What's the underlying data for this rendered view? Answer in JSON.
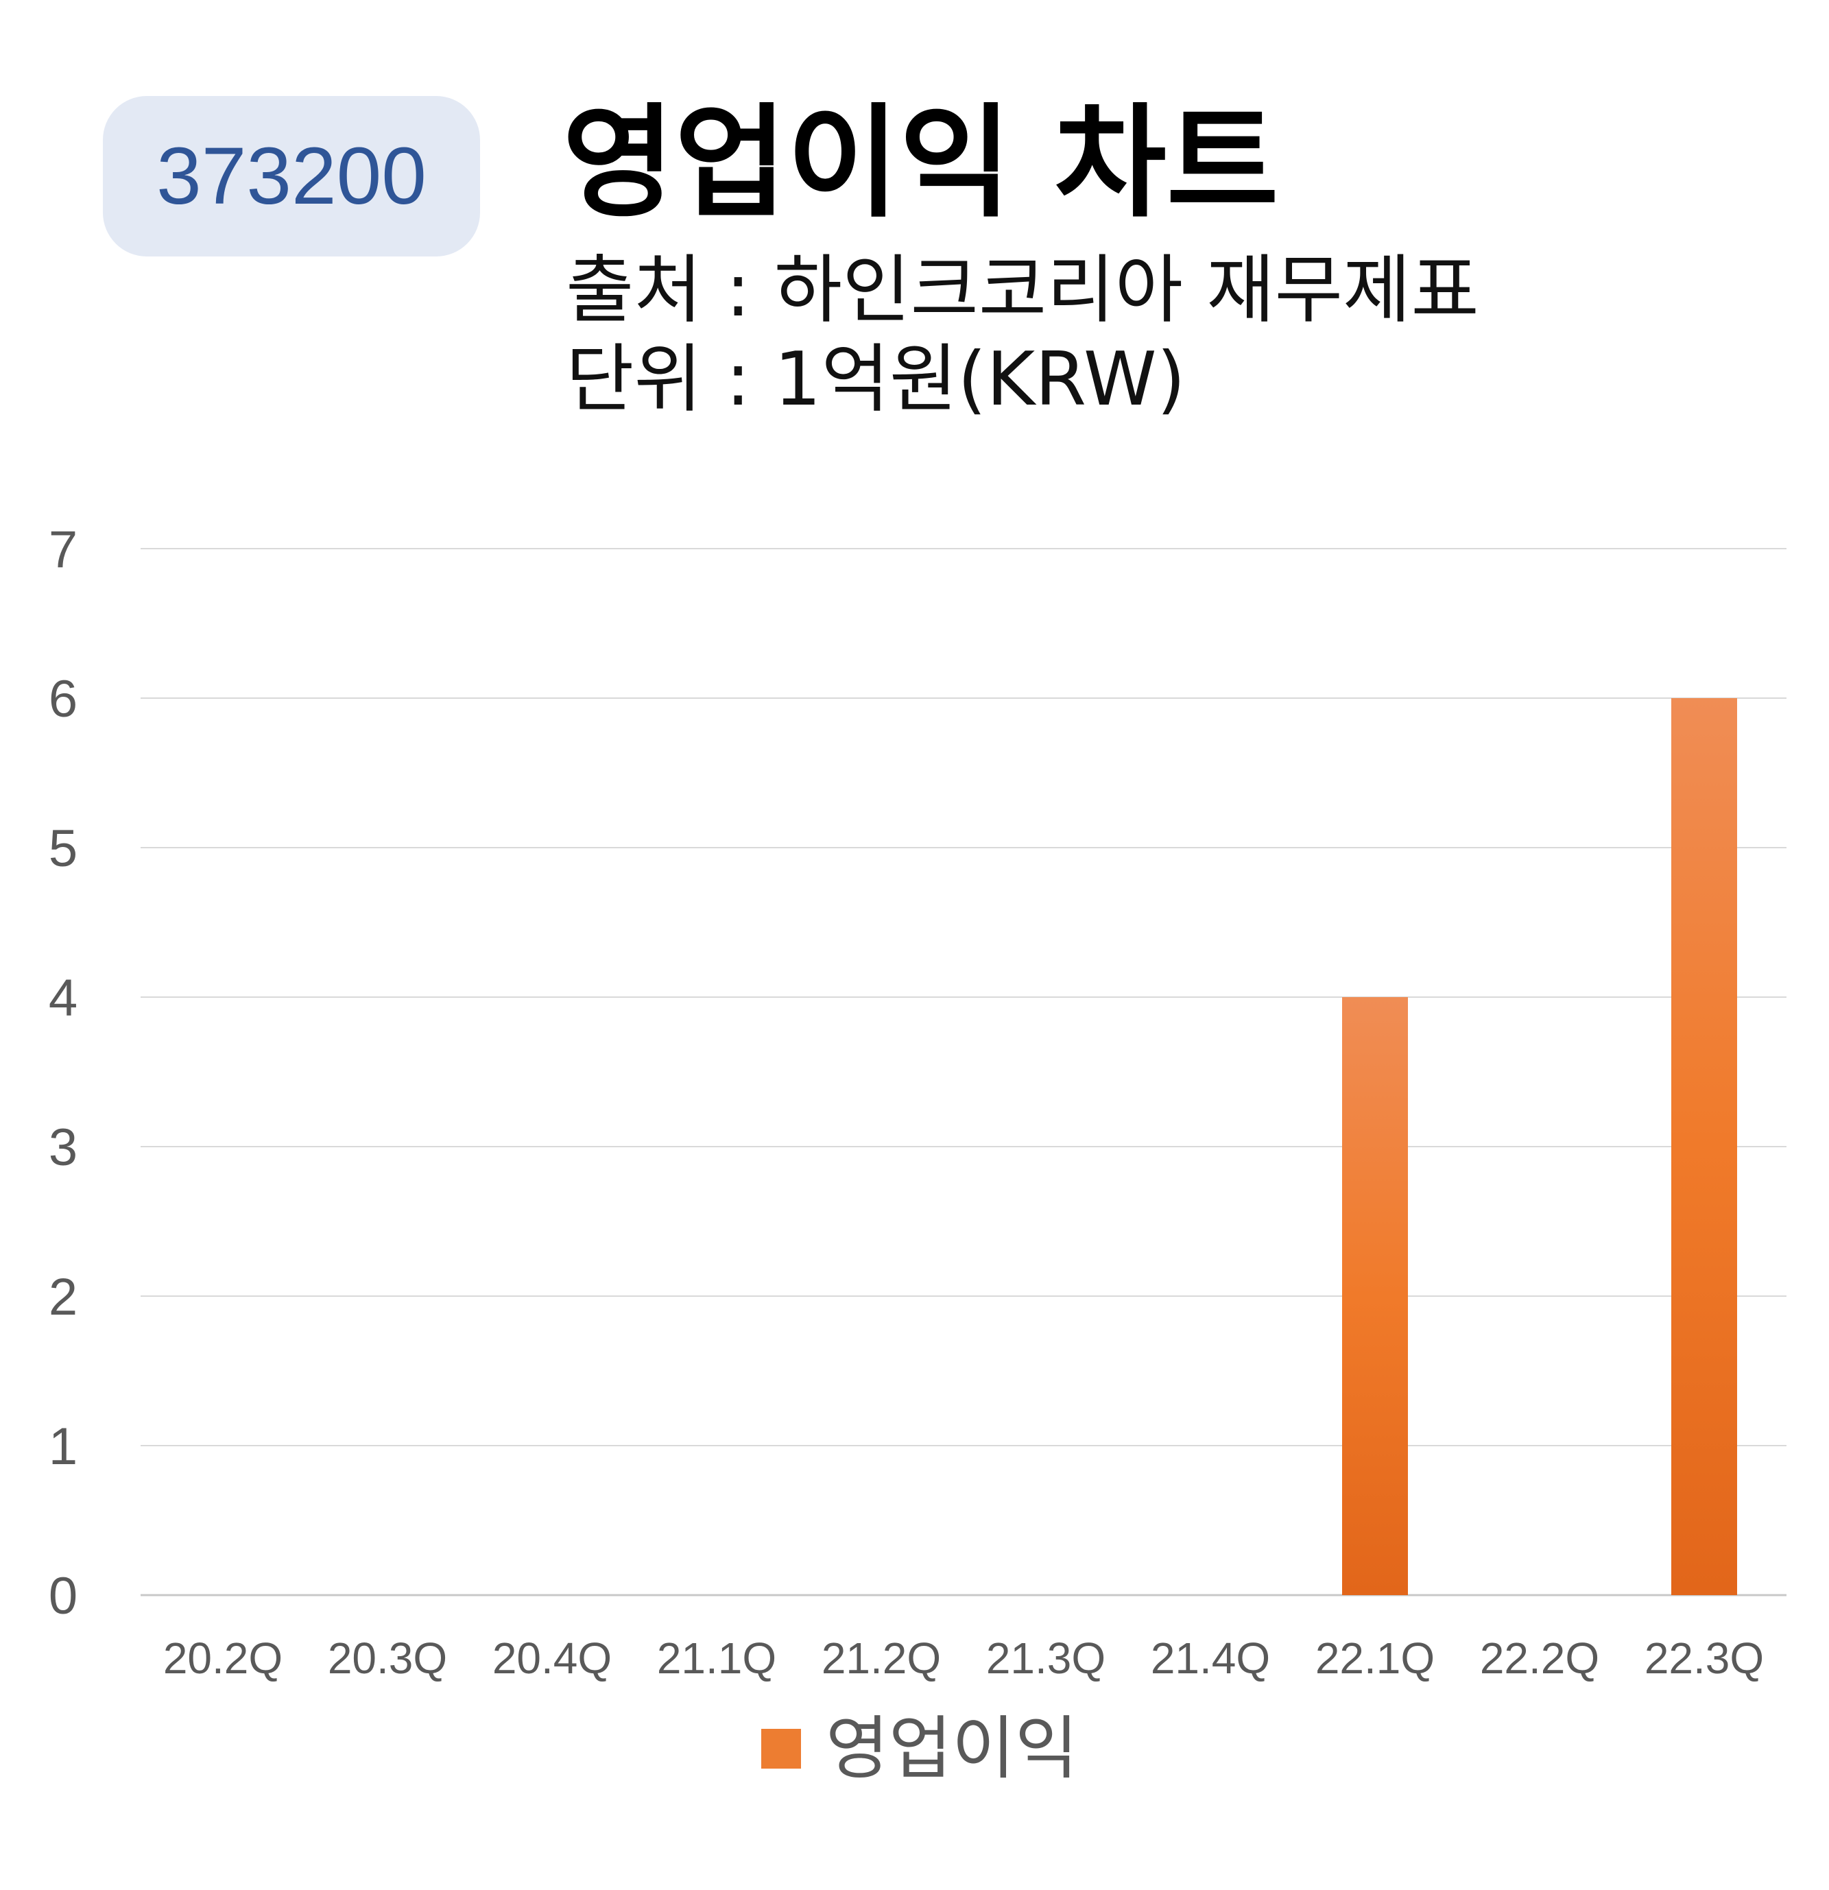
{
  "badge": {
    "code": "373200"
  },
  "header": {
    "title": "영업이익 차트",
    "source": "출처 : 하인크코리아 재무제표",
    "unit": "단위 : 1억원(KRW)"
  },
  "colors": {
    "bar": "#ed7d31",
    "badge_bg": "#e3e9f4",
    "badge_text": "#2f5597",
    "grid": "#d9d9d9"
  },
  "chart_data": {
    "type": "bar",
    "categories": [
      "20.2Q",
      "20.3Q",
      "20.4Q",
      "21.1Q",
      "21.2Q",
      "21.3Q",
      "21.4Q",
      "22.1Q",
      "22.2Q",
      "22.3Q"
    ],
    "series": [
      {
        "name": "영업이익",
        "values": [
          0,
          0,
          0,
          0,
          0,
          0,
          0,
          4,
          0,
          6
        ]
      }
    ],
    "ylim": [
      0,
      7
    ],
    "yticks": [
      0,
      1,
      2,
      3,
      4,
      5,
      6,
      7
    ],
    "grid": true,
    "legend": "bottom"
  }
}
